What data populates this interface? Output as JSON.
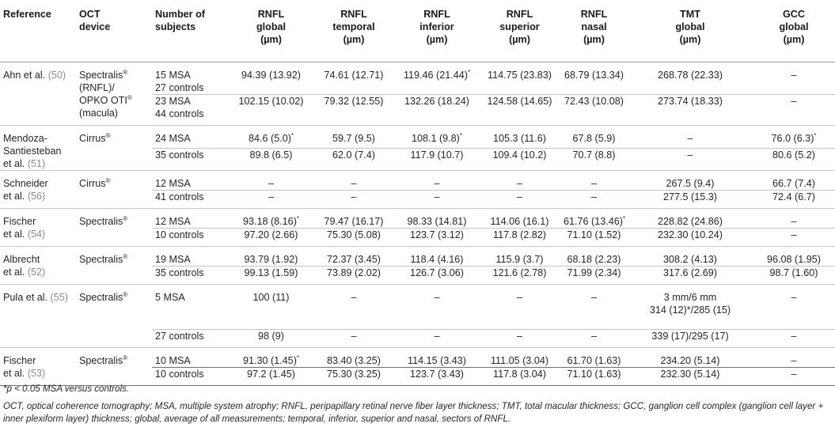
{
  "headers": [
    {
      "line1": "Reference",
      "line2": "",
      "line3": "",
      "align": "left"
    },
    {
      "line1": "OCT",
      "line2": "device",
      "line3": "",
      "align": "left"
    },
    {
      "line1": "Number of",
      "line2": "subjects",
      "line3": "",
      "align": "left"
    },
    {
      "line1": "RNFL",
      "line2": "global",
      "line3": "(µm)",
      "align": "center"
    },
    {
      "line1": "RNFL",
      "line2": "temporal",
      "line3": "(µm)",
      "align": "center"
    },
    {
      "line1": "RNFL",
      "line2": "inferior",
      "line3": "(µm)",
      "align": "center"
    },
    {
      "line1": "RNFL",
      "line2": "superior",
      "line3": "(µm)",
      "align": "center"
    },
    {
      "line1": "RNFL",
      "line2": "nasal",
      "line3": "(µm)",
      "align": "center"
    },
    {
      "line1": "TMT",
      "line2": "global",
      "line3": "(µm)",
      "align": "center"
    },
    {
      "line1": "GCC",
      "line2": "global",
      "line3": "(µm)",
      "align": "center"
    }
  ],
  "groups": [
    {
      "ref": [
        {
          "text": "Ahn et al. ",
          "cite": "(50)"
        }
      ],
      "device": [
        {
          "text": "Spectralis",
          "sup": "®"
        },
        {
          "text": "(RNFL)/",
          "sup": ""
        },
        {
          "text": "OPKO OTI",
          "sup": "®"
        },
        {
          "text": "(macula)",
          "sup": ""
        }
      ],
      "rows": [
        {
          "subjects": [
            "15 MSA",
            "27 controls"
          ],
          "vals": [
            [
              "94.39 (13.92)",
              ""
            ],
            [
              "74.61 (12.71)",
              ""
            ],
            [
              "119.46 (21.44)",
              "*"
            ],
            [
              "114.75 (23.83)",
              ""
            ],
            [
              "68.79 (13.34)",
              ""
            ],
            [
              "268.78 (22.33)",
              ""
            ],
            [
              "–",
              ""
            ]
          ]
        },
        {
          "subjects": [
            "23 MSA",
            "44 controls"
          ],
          "vals": [
            [
              "102.15 (10.02)",
              ""
            ],
            [
              "79.32 (12.55)",
              ""
            ],
            [
              "132.26 (18.24)",
              ""
            ],
            [
              "124.58 (14.65)",
              ""
            ],
            [
              "72.43 (10.08)",
              ""
            ],
            [
              "273.74 (18.33)",
              ""
            ],
            [
              "–",
              ""
            ]
          ]
        }
      ]
    },
    {
      "ref": [
        {
          "text": "Mendoza-",
          "cite": ""
        },
        {
          "text": "Santiesteban",
          "cite": ""
        },
        {
          "text": "et al. ",
          "cite": "(51)"
        }
      ],
      "device": [
        {
          "text": "Cirrus",
          "sup": "®"
        }
      ],
      "rows": [
        {
          "subjects": [
            "24 MSA"
          ],
          "vals": [
            [
              "84.6 (5.0)",
              "*"
            ],
            [
              "59.7 (9.5)",
              ""
            ],
            [
              "108.1 (9.8)",
              "*"
            ],
            [
              "105.3 (11.6)",
              ""
            ],
            [
              "67.8 (5.9)",
              ""
            ],
            [
              "–",
              ""
            ],
            [
              "76.0 (6.3)",
              "*"
            ]
          ]
        },
        {
          "subjects": [
            "35 controls"
          ],
          "vals": [
            [
              "89.8 (6.5)",
              ""
            ],
            [
              "62.0 (7.4)",
              ""
            ],
            [
              "117.9 (10.7)",
              ""
            ],
            [
              "109.4 (10.2)",
              ""
            ],
            [
              "70.7 (8.8)",
              ""
            ],
            [
              "–",
              ""
            ],
            [
              "80.6 (5.2)",
              ""
            ]
          ]
        }
      ]
    },
    {
      "ref": [
        {
          "text": "Schneider",
          "cite": ""
        },
        {
          "text": "et al. ",
          "cite": "(56)"
        }
      ],
      "device": [
        {
          "text": "Cirrus",
          "sup": "®"
        }
      ],
      "rows": [
        {
          "subjects": [
            "12 MSA"
          ],
          "vals": [
            [
              "–",
              ""
            ],
            [
              "–",
              ""
            ],
            [
              "–",
              ""
            ],
            [
              "–",
              ""
            ],
            [
              "–",
              ""
            ],
            [
              "267.5 (9.4)",
              ""
            ],
            [
              "66.7 (7.4)",
              ""
            ]
          ]
        },
        {
          "subjects": [
            "41 controls"
          ],
          "vals": [
            [
              "–",
              ""
            ],
            [
              "–",
              ""
            ],
            [
              "–",
              ""
            ],
            [
              "–",
              ""
            ],
            [
              "–",
              ""
            ],
            [
              "277.5 (15.3)",
              ""
            ],
            [
              "72.4 (6.7)",
              ""
            ]
          ]
        }
      ]
    },
    {
      "ref": [
        {
          "text": "Fischer",
          "cite": ""
        },
        {
          "text": "et al. ",
          "cite": "(54)"
        }
      ],
      "device": [
        {
          "text": "Spectralis",
          "sup": "®"
        }
      ],
      "rows": [
        {
          "subjects": [
            "12 MSA"
          ],
          "vals": [
            [
              "93.18 (8.16)",
              "*"
            ],
            [
              "79.47 (16.17)",
              ""
            ],
            [
              "98.33 (14.81)",
              ""
            ],
            [
              "114.06 (16.1)",
              ""
            ],
            [
              "61.76 (13.46)",
              "*"
            ],
            [
              "228.82 (24.86)",
              ""
            ],
            [
              "–",
              ""
            ]
          ]
        },
        {
          "subjects": [
            "10 controls"
          ],
          "vals": [
            [
              "97.20 (2.66)",
              ""
            ],
            [
              "75.30 (5.08)",
              ""
            ],
            [
              "123.7 (3.12)",
              ""
            ],
            [
              "117.8 (2.82)",
              ""
            ],
            [
              "71.10 (1.52)",
              ""
            ],
            [
              "232.30 (10.24)",
              ""
            ],
            [
              "–",
              ""
            ]
          ]
        }
      ]
    },
    {
      "ref": [
        {
          "text": "Albrecht",
          "cite": ""
        },
        {
          "text": "et al. ",
          "cite": "(52)"
        }
      ],
      "device": [
        {
          "text": "Spectralis",
          "sup": "®"
        }
      ],
      "rows": [
        {
          "subjects": [
            "19 MSA"
          ],
          "vals": [
            [
              "93.79 (1.92)",
              ""
            ],
            [
              "72.37 (3.45)",
              ""
            ],
            [
              "118.4 (4.16)",
              ""
            ],
            [
              "115.9 (3.7)",
              ""
            ],
            [
              "68.18 (2.23)",
              ""
            ],
            [
              "308.2 (4.13)",
              ""
            ],
            [
              "96.08 (1.95)",
              ""
            ]
          ]
        },
        {
          "subjects": [
            "35 controls"
          ],
          "vals": [
            [
              "99.13 (1.59)",
              ""
            ],
            [
              "73.89 (2.02)",
              ""
            ],
            [
              "126.7 (3.06)",
              ""
            ],
            [
              "121.6 (2.78)",
              ""
            ],
            [
              "71.99 (2.34)",
              ""
            ],
            [
              "317.6 (2.69)",
              ""
            ],
            [
              "98.7 (1.60)",
              ""
            ]
          ]
        }
      ]
    },
    {
      "ref": [
        {
          "text": "Pula et al. ",
          "cite": "(55)"
        }
      ],
      "device": [
        {
          "text": "Spectralis",
          "sup": "®"
        }
      ],
      "rows": [
        {
          "subjects": [
            "5 MSA",
            "",
            ""
          ],
          "vals": [
            [
              "100 (11)",
              ""
            ],
            [
              "–",
              ""
            ],
            [
              "–",
              ""
            ],
            [
              "–",
              ""
            ],
            [
              "–",
              ""
            ],
            [
              "3 mm/6 mm",
              "",
              "314 (12)*/285 (15)"
            ],
            [
              "–",
              ""
            ]
          ]
        },
        {
          "subjects": [
            "27 controls"
          ],
          "vals": [
            [
              "98 (9)",
              ""
            ],
            [
              "–",
              ""
            ],
            [
              "–",
              ""
            ],
            [
              "–",
              ""
            ],
            [
              "–",
              ""
            ],
            [
              "339 (17)/295 (17)",
              ""
            ],
            [
              "–",
              ""
            ]
          ]
        }
      ]
    },
    {
      "ref": [
        {
          "text": "Fischer",
          "cite": ""
        },
        {
          "text": "et al. ",
          "cite": "(53)"
        }
      ],
      "device": [
        {
          "text": "Spectralis",
          "sup": "®"
        }
      ],
      "rows": [
        {
          "subjects": [
            "10 MSA"
          ],
          "vals": [
            [
              "91.30 (1.45)",
              "*"
            ],
            [
              "83.40 (3.25)",
              ""
            ],
            [
              "114.15 (3.43)",
              ""
            ],
            [
              "111.05 (3.04)",
              ""
            ],
            [
              "61.70 (1.63)",
              ""
            ],
            [
              "234.20 (5.14)",
              ""
            ],
            [
              "–",
              ""
            ]
          ]
        },
        {
          "subjects": [
            "10 controls"
          ],
          "vals": [
            [
              "97.2 (1.45)",
              ""
            ],
            [
              "75.30 (3.25)",
              ""
            ],
            [
              "123.7 (3.43)",
              ""
            ],
            [
              "117.8 (3.04)",
              ""
            ],
            [
              "71.10 (1.63)",
              ""
            ],
            [
              "232.30 (5.14)",
              ""
            ],
            [
              "–",
              ""
            ]
          ]
        }
      ]
    }
  ],
  "footnotes": {
    "significance": "*p < 0.05 MSA versus controls.",
    "abbreviations": "OCT, optical coherence tomography; MSA, multiple system atrophy; RNFL, peripapillary retinal nerve fiber layer thickness; TMT, total macular thickness; GCC, ganglion cell complex (ganglion cell layer + inner plexiform layer) thickness; global, average of all measurements; temporal, inferior, superior and nasal, sectors of RNFL."
  }
}
